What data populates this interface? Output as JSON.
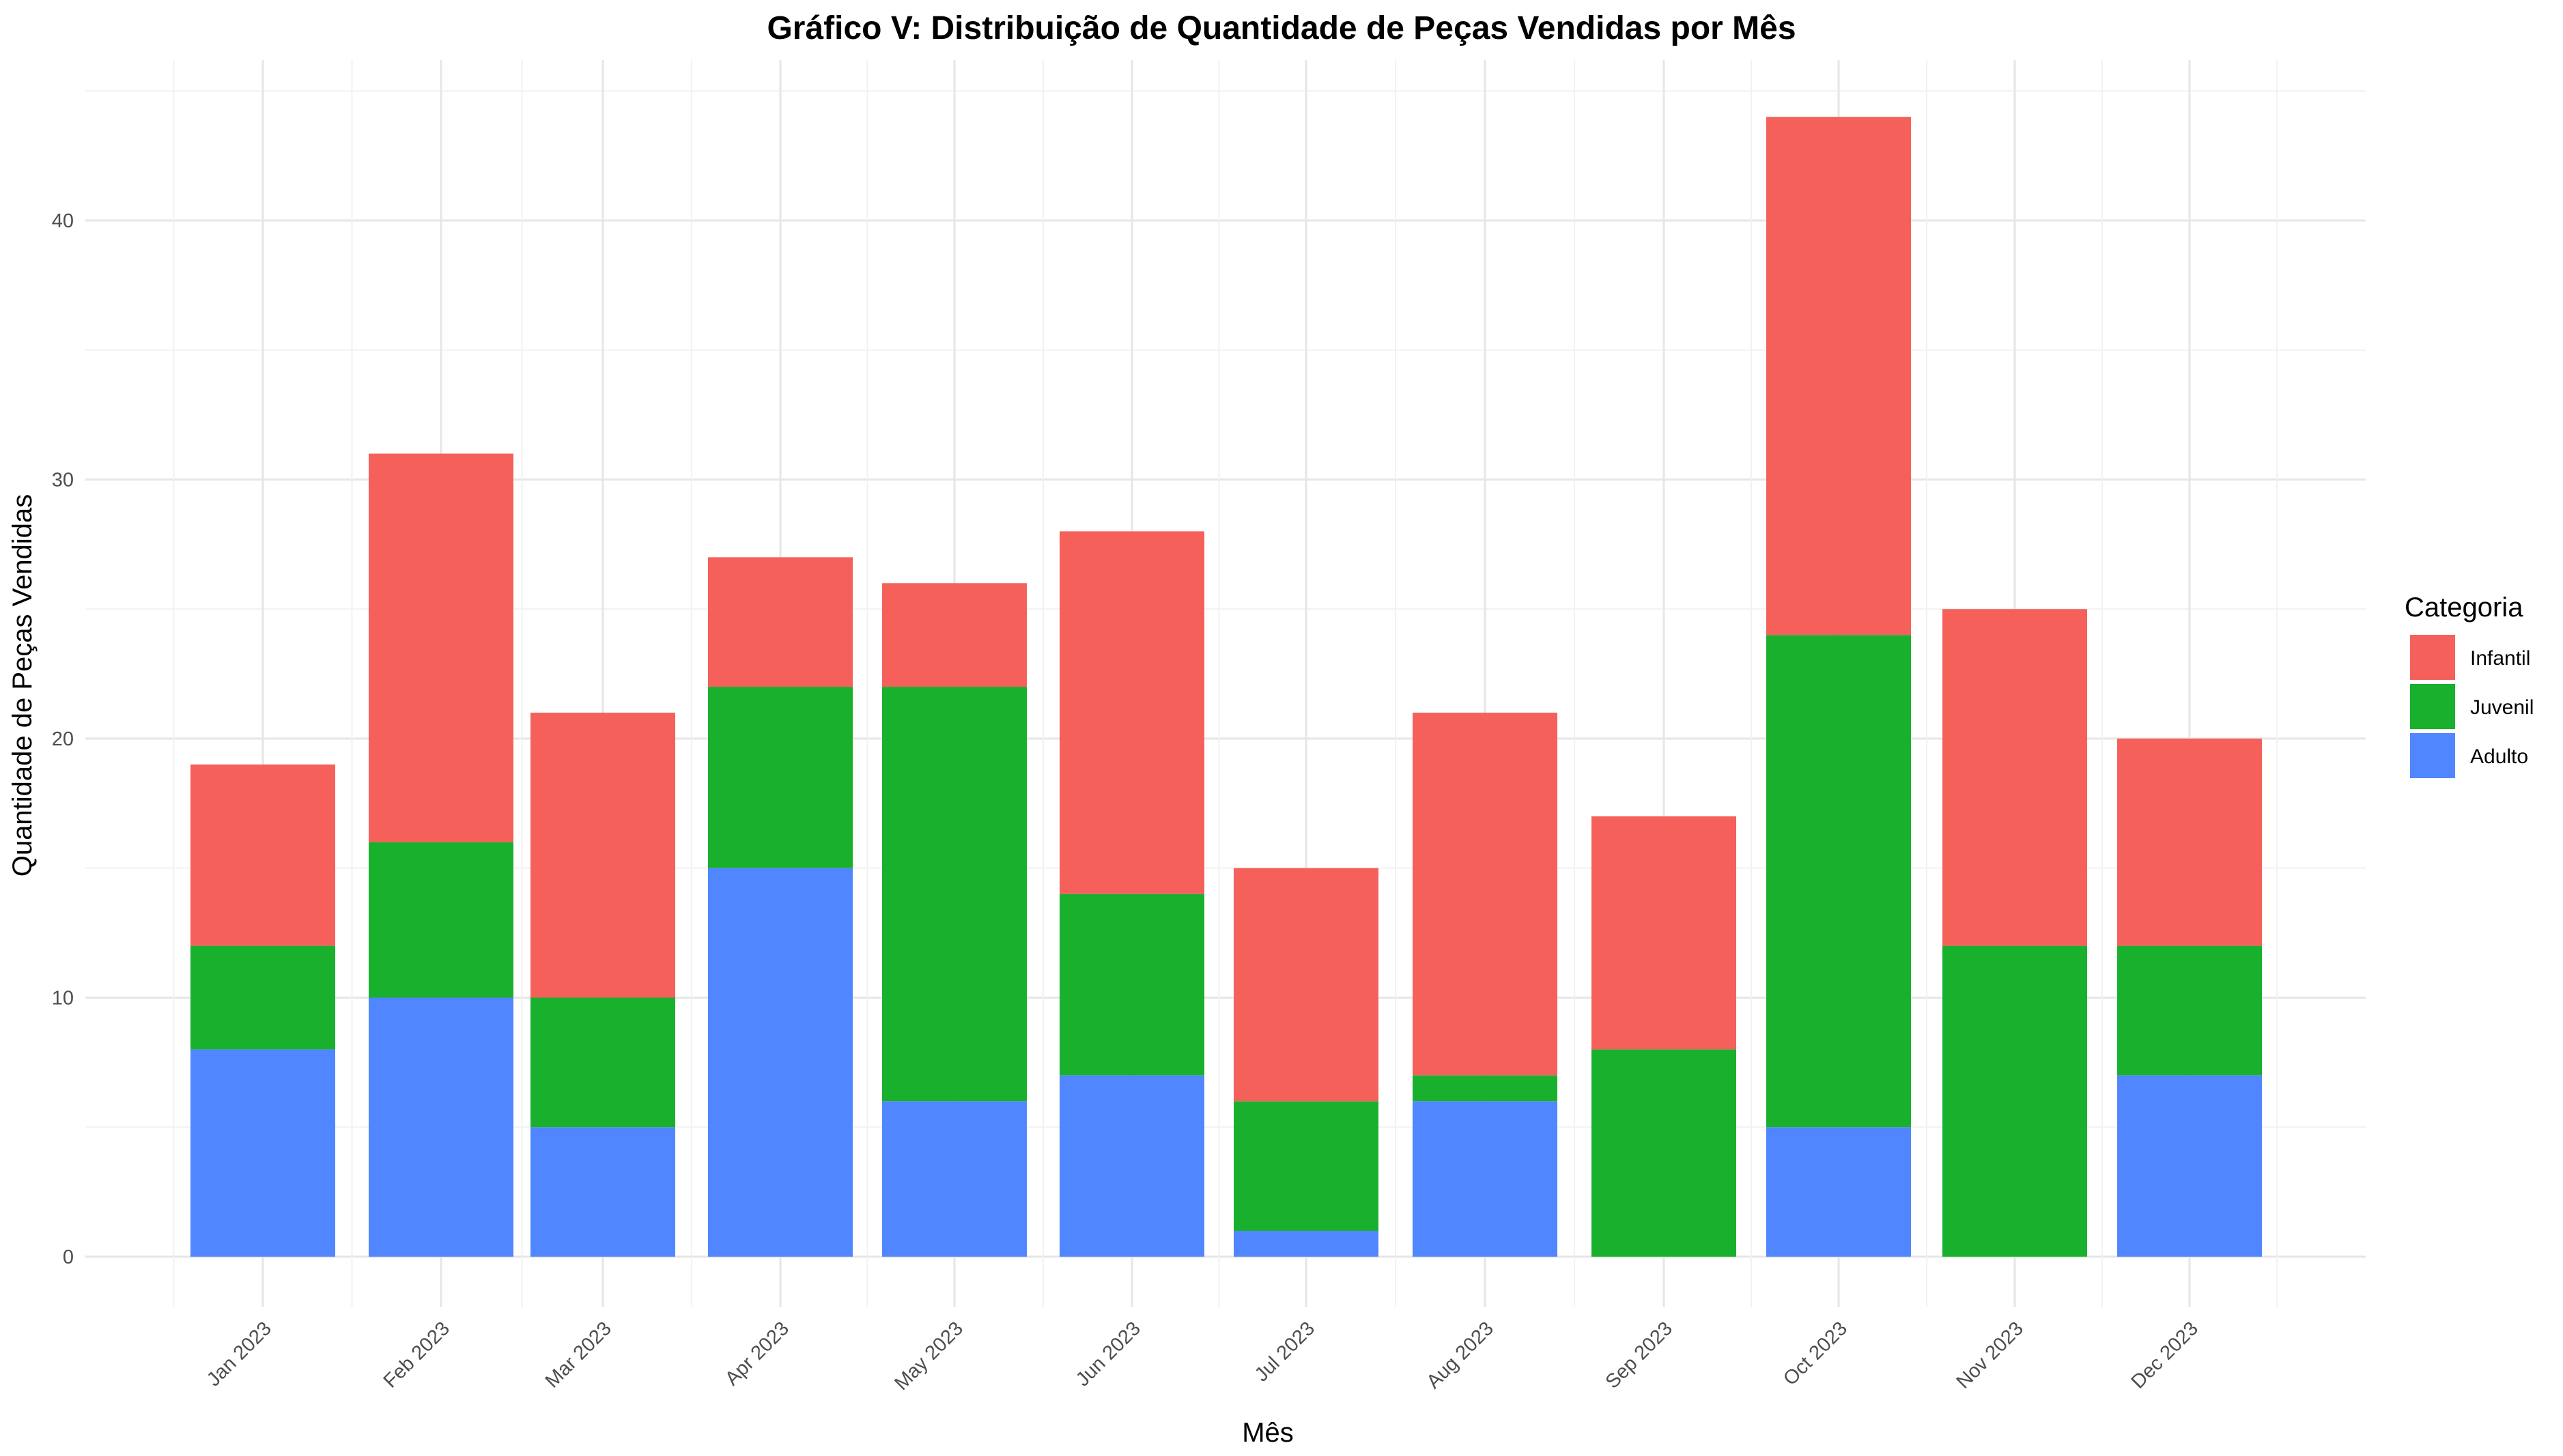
{
  "chart_data": {
    "type": "bar",
    "stacked": true,
    "title": "Gráfico V: Distribuição de Quantidade de Peças Vendidas por Mês",
    "xlabel": "Mês",
    "ylabel": "Quantidade de Peças Vendidas",
    "categories": [
      "Jan 2023",
      "Feb 2023",
      "Mar 2023",
      "Apr 2023",
      "May 2023",
      "Jun 2023",
      "Jul 2023",
      "Aug 2023",
      "Sep 2023",
      "Oct 2023",
      "Nov 2023",
      "Dec 2023"
    ],
    "series": [
      {
        "name": "Adulto",
        "color": "#5086FF",
        "values": [
          8,
          10,
          5,
          15,
          6,
          7,
          1,
          6,
          0,
          5,
          0,
          7
        ]
      },
      {
        "name": "Juvenil",
        "color": "#19B02E",
        "values": [
          4,
          6,
          5,
          7,
          16,
          7,
          5,
          1,
          8,
          19,
          12,
          5
        ]
      },
      {
        "name": "Infantil",
        "color": "#F5605B",
        "values": [
          7,
          15,
          11,
          5,
          4,
          14,
          9,
          14,
          9,
          20,
          13,
          8
        ]
      }
    ],
    "legend": {
      "title": "Categoria",
      "order": [
        "Infantil",
        "Juvenil",
        "Adulto"
      ],
      "placement": "right"
    },
    "ylim": [
      0,
      46
    ],
    "yticks": [
      0,
      10,
      20,
      30,
      40
    ],
    "grid": true
  }
}
